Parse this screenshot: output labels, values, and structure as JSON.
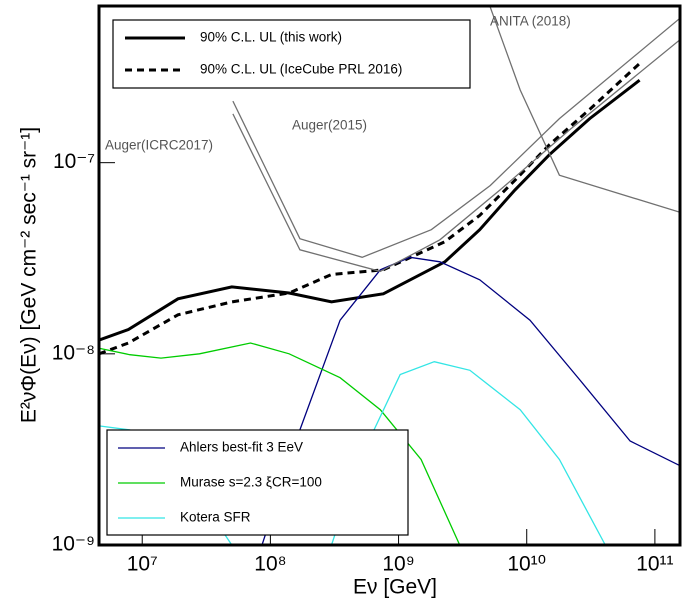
{
  "chart_data": {
    "type": "line",
    "xlabel": "Eν [GeV]",
    "ylabel": "E²νΦ(Eν) [GeV cm⁻² sec⁻¹ sr⁻¹]",
    "xscale": "log",
    "yscale": "log",
    "xlim": [
      4600000.0,
      157000000000.0
    ],
    "ylim": [
      1e-09,
      6.6e-07
    ],
    "xticks": [
      {
        "value": 10000000.0,
        "label": "10⁷"
      },
      {
        "value": 100000000.0,
        "label": "10⁸"
      },
      {
        "value": 1000000000.0,
        "label": "10⁹"
      },
      {
        "value": 10000000000.0,
        "label": "10¹⁰"
      },
      {
        "value": 100000000000.0,
        "label": "10¹¹"
      }
    ],
    "yticks": [
      {
        "value": 1e-09,
        "label": "10⁻⁹"
      },
      {
        "value": 1e-08,
        "label": "10⁻⁸"
      },
      {
        "value": 1e-07,
        "label": "10⁻⁷"
      }
    ],
    "series": [
      {
        "name": "90% C.L. UL (this work)",
        "color": "#000000",
        "width": 3,
        "dash": false,
        "legend": "upper left",
        "x": [
          4600000.0,
          7800000.0,
          19000000.0,
          50000000.0,
          140000000.0,
          300000000.0,
          760000000.0,
          2300000000.0,
          4300000000.0,
          8100000000.0,
          15000000000.0,
          31000000000.0,
          76000000000.0
        ],
        "values": [
          1.18e-08,
          1.34e-08,
          1.94e-08,
          2.24e-08,
          2.08e-08,
          1.87e-08,
          2.06e-08,
          3.03e-08,
          4.46e-08,
          7.2e-08,
          1.1e-07,
          1.7e-07,
          2.7e-07
        ]
      },
      {
        "name": "90% C.L. UL (IceCube PRL 2016)",
        "color": "#000000",
        "width": 3,
        "dash": true,
        "legend": "upper left",
        "x": [
          4600000.0,
          7800000.0,
          19000000.0,
          50000000.0,
          140000000.0,
          300000000.0,
          760000000.0,
          2300000000.0,
          4300000000.0,
          8100000000.0,
          15000000000.0,
          31000000000.0,
          76000000000.0
        ],
        "values": [
          1e-08,
          1.14e-08,
          1.6e-08,
          1.87e-08,
          2.08e-08,
          2.6e-08,
          2.75e-08,
          3.86e-08,
          5.3e-08,
          8.1e-08,
          1.24e-07,
          1.9e-07,
          3.3e-07
        ]
      },
      {
        "name": "Ahlers best-fit 3 EeV",
        "color": "#00007f",
        "width": 1.3,
        "dash": false,
        "legend": "lower left",
        "x": [
          86000000.0,
          170000000.0,
          350000000.0,
          720000000.0,
          1230000000.0,
          2100000000.0,
          4300000000.0,
          10600000000.0,
          26000000000.0,
          64000000000.0,
          157000000000.0
        ],
        "values": [
          1e-09,
          4e-09,
          1.5e-08,
          2.75e-08,
          3.2e-08,
          3.03e-08,
          2.44e-08,
          1.5e-08,
          7.3e-09,
          3.5e-09,
          2.6e-09
        ]
      },
      {
        "name": "Murase s=2.3 ξCR=100",
        "color": "#00cc00",
        "width": 1.3,
        "dash": false,
        "legend": "lower left",
        "x": [
          4600000.0,
          8000000.0,
          14000000.0,
          28000000.0,
          70000000.0,
          140000000.0,
          350000000.0,
          720000000.0,
          1500000000.0,
          3000000000.0
        ],
        "values": [
          1.07e-08,
          9.9e-09,
          9.5e-09,
          1e-08,
          1.14e-08,
          1e-08,
          7.5e-09,
          5.1e-09,
          2.8e-09,
          1e-09
        ]
      },
      {
        "name": "Kotera SFR",
        "color": "#33e5e5",
        "width": 1.3,
        "dash": false,
        "legend": "lower left",
        "x": [
          4600000.0,
          8000000.0,
          20000000.0,
          50000000.0,
          100000000.0,
          300000000.0,
          500000000.0,
          1030000000.0,
          1900000000.0,
          3600000000.0,
          8900000000.0,
          18000000000.0,
          41000000000.0
        ],
        "values": [
          4.2e-09,
          4e-09,
          2.5e-09,
          1e-09,
          5e-10,
          1e-09,
          2.8e-09,
          7.8e-09,
          9.1e-09,
          8.2e-09,
          5.1e-09,
          2.8e-09,
          1e-09
        ]
      },
      {
        "name": "Auger(2015)",
        "color": "#707070",
        "width": 1.3,
        "dash": false,
        "x": [
          51000000.0,
          170000000.0,
          520000000.0,
          1800000000.0,
          5200000000.0,
          18000000000.0,
          157000000000.0
        ],
        "values": [
          2.1e-07,
          4e-08,
          3.2e-08,
          4.46e-08,
          7.6e-08,
          1.7e-07,
          5.7e-07
        ]
      },
      {
        "name": "Auger(ICRC2017)",
        "color": "#707070",
        "width": 1.3,
        "dash": false,
        "x": [
          51000000.0,
          170000000.0,
          720000000.0,
          2100000000.0,
          6200000000.0,
          22000000000.0,
          157000000000.0
        ],
        "values": [
          1.8e-07,
          3.5e-08,
          2.7e-08,
          3.95e-08,
          7.2e-08,
          1.5e-07,
          4.4e-07
        ]
      },
      {
        "name": "ANITA (2018)",
        "color": "#707070",
        "width": 1.3,
        "dash": false,
        "x": [
          5200000000.0,
          8900000000.0,
          18000000000.0,
          157000000000.0
        ],
        "values": [
          6.5e-07,
          2.4e-07,
          8.6e-08,
          5.5e-08
        ]
      }
    ]
  }
}
